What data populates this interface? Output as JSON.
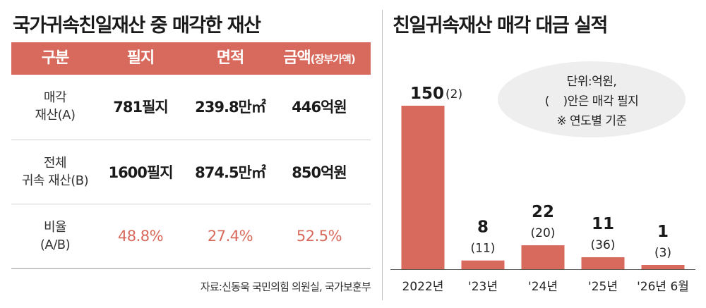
{
  "left": {
    "title": "국가귀속친일재산 중 매각한 재산",
    "headers": [
      "구분",
      "필지",
      "면적",
      "금액",
      "(장부가액)"
    ],
    "rows": [
      {
        "label1": "매각",
        "label2": "재산(A)",
        "parcels": "781필지",
        "area": "239.8만㎡",
        "amount": "446억원"
      },
      {
        "label1": "전체",
        "label2": "귀속 재산(B)",
        "parcels": "1600필지",
        "area": "874.5만㎡",
        "amount": "850억원"
      },
      {
        "label1": "비율",
        "label2": "(A/B)",
        "parcels": "48.8%",
        "area": "27.4%",
        "amount": "52.5%"
      }
    ],
    "source": "자료:신동욱 국민의힘 의원실, 국가보훈부"
  },
  "right": {
    "title": "친일귀속재산 매각 대금 실적",
    "note": [
      "단위:억원,",
      "(    )안은 매각 필지",
      "※ 연도별 기준"
    ]
  },
  "colors": {
    "accent": "#d86a5d",
    "note_bg": "#eeeeee",
    "divider": "#bdbdbd"
  },
  "chart_data": {
    "type": "bar",
    "title": "친일귀속재산 매각 대금 실적",
    "categories": [
      "2022년",
      "'23년",
      "'24년",
      "'25년",
      "'26년 6월"
    ],
    "series": [
      {
        "name": "매각 대금",
        "values": [
          150,
          8,
          22,
          11,
          1
        ]
      },
      {
        "name": "매각 필지",
        "values": [
          2,
          11,
          20,
          36,
          3
        ]
      }
    ],
    "value_labels": [
      "150",
      "8",
      "22",
      "11",
      "1"
    ],
    "count_labels": [
      "(2)",
      "(11)",
      "(20)",
      "(36)",
      "(3)"
    ],
    "unit": "억원",
    "grid": false,
    "legend": "none"
  }
}
